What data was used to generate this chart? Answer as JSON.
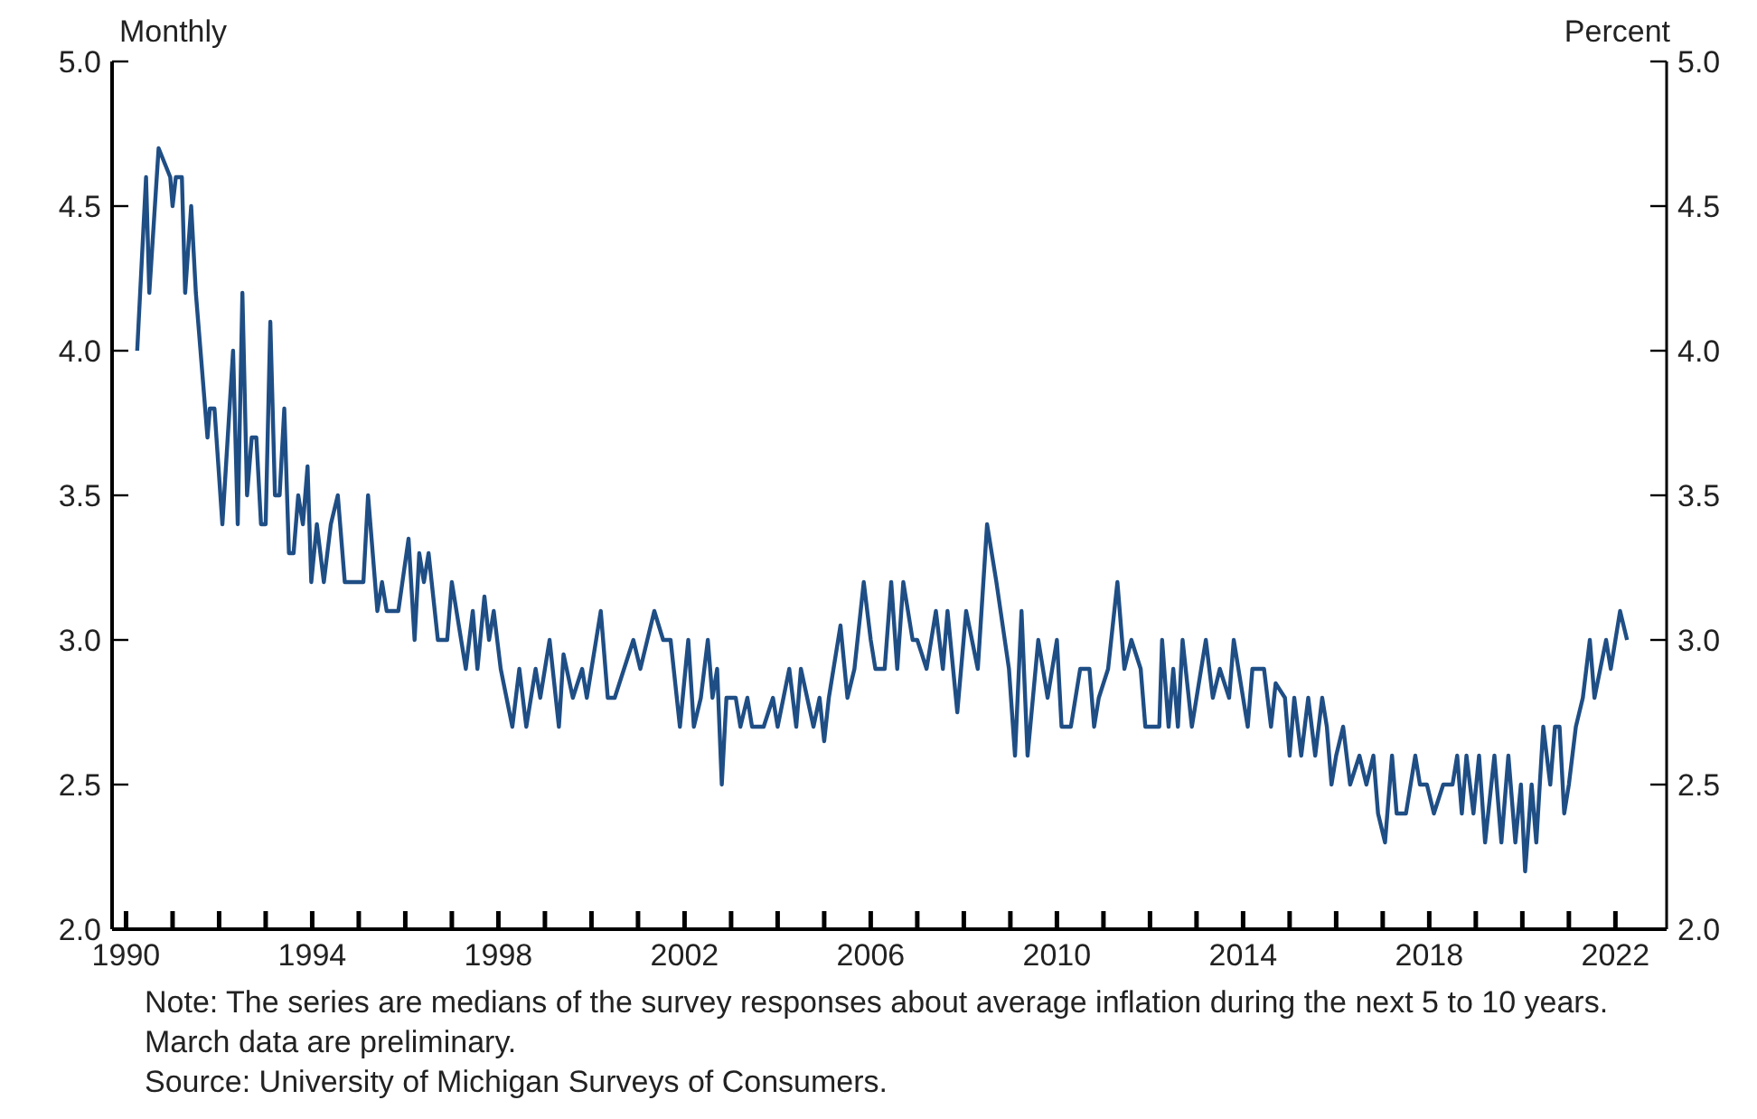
{
  "chart_data": {
    "type": "line",
    "ylabel": "Monthly",
    "y2label": "Percent",
    "x": [
      1990.24,
      1990.43,
      1990.5,
      1990.7,
      1990.95,
      1991.0,
      1991.07,
      1991.2,
      1991.27,
      1991.4,
      1991.5,
      1991.7,
      1991.75,
      1991.8,
      1991.9,
      1992.07,
      1992.3,
      1992.4,
      1992.5,
      1992.6,
      1992.7,
      1992.8,
      1992.9,
      1993.0,
      1993.1,
      1993.2,
      1993.3,
      1993.4,
      1993.5,
      1993.6,
      1993.7,
      1993.8,
      1993.9,
      1993.98,
      1994.1,
      1994.25,
      1994.4,
      1994.55,
      1994.7,
      1995.1,
      1995.2,
      1995.4,
      1995.5,
      1995.6,
      1995.85,
      1996.07,
      1996.2,
      1996.3,
      1996.4,
      1996.5,
      1996.7,
      1996.9,
      1997.0,
      1997.3,
      1997.45,
      1997.55,
      1997.7,
      1997.8,
      1997.9,
      1998.05,
      1998.3,
      1998.45,
      1998.6,
      1998.8,
      1998.9,
      1999.1,
      1999.3,
      1999.4,
      1999.6,
      1999.8,
      1999.9,
      2000.1,
      2000.2,
      2000.35,
      2000.5,
      2000.9,
      2001.05,
      2001.35,
      2001.54,
      2001.7,
      2001.9,
      2002.08,
      2002.2,
      2002.35,
      2002.5,
      2002.6,
      2002.7,
      2002.8,
      2002.9,
      2003.1,
      2003.2,
      2003.35,
      2003.45,
      2003.7,
      2003.9,
      2004.0,
      2004.25,
      2004.4,
      2004.5,
      2004.77,
      2004.9,
      2005.0,
      2005.1,
      2005.35,
      2005.5,
      2005.65,
      2005.85,
      2006.0,
      2006.1,
      2006.3,
      2006.44,
      2006.57,
      2006.7,
      2006.9,
      2007.0,
      2007.2,
      2007.4,
      2007.55,
      2007.65,
      2007.86,
      2008.05,
      2008.3,
      2008.5,
      2008.7,
      2008.97,
      2009.1,
      2009.24,
      2009.37,
      2009.6,
      2009.8,
      2010.0,
      2010.1,
      2010.3,
      2010.5,
      2010.7,
      2010.8,
      2010.9,
      2011.1,
      2011.3,
      2011.45,
      2011.6,
      2011.8,
      2011.9,
      2012.2,
      2012.26,
      2012.4,
      2012.5,
      2012.6,
      2012.7,
      2012.9,
      2013.2,
      2013.35,
      2013.5,
      2013.7,
      2013.8,
      2014.0,
      2014.1,
      2014.2,
      2014.45,
      2014.6,
      2014.7,
      2014.9,
      2015.0,
      2015.1,
      2015.25,
      2015.4,
      2015.55,
      2015.7,
      2015.8,
      2015.9,
      2016.0,
      2016.15,
      2016.3,
      2016.5,
      2016.65,
      2016.8,
      2016.9,
      2017.05,
      2017.2,
      2017.3,
      2017.5,
      2017.7,
      2017.8,
      2017.95,
      2018.1,
      2018.3,
      2018.5,
      2018.6,
      2018.7,
      2018.8,
      2018.95,
      2019.07,
      2019.2,
      2019.4,
      2019.55,
      2019.7,
      2019.85,
      2019.97,
      2020.06,
      2020.2,
      2020.3,
      2020.45,
      2020.6,
      2020.7,
      2020.8,
      2020.9,
      2021.0,
      2021.15,
      2021.3,
      2021.45,
      2021.55,
      2021.8,
      2021.9,
      2022.0,
      2022.1,
      2022.25
    ],
    "series": [
      {
        "color": "#1f4e85",
        "values": [
          4.0,
          4.6,
          4.2,
          4.7,
          4.6,
          4.5,
          4.6,
          4.6,
          4.2,
          4.5,
          4.2,
          3.8,
          3.7,
          3.8,
          3.8,
          3.4,
          4.0,
          3.4,
          4.2,
          3.5,
          3.7,
          3.7,
          3.4,
          3.4,
          4.1,
          3.5,
          3.5,
          3.8,
          3.3,
          3.3,
          3.5,
          3.4,
          3.6,
          3.2,
          3.4,
          3.2,
          3.4,
          3.5,
          3.2,
          3.2,
          3.5,
          3.1,
          3.2,
          3.1,
          3.1,
          3.35,
          3.0,
          3.3,
          3.2,
          3.3,
          3.0,
          3.0,
          3.2,
          2.9,
          3.1,
          2.9,
          3.15,
          3.0,
          3.1,
          2.9,
          2.7,
          2.9,
          2.7,
          2.9,
          2.8,
          3.0,
          2.7,
          2.95,
          2.8,
          2.9,
          2.8,
          3.0,
          3.1,
          2.8,
          2.8,
          3.0,
          2.9,
          3.1,
          3.0,
          3.0,
          2.7,
          3.0,
          2.7,
          2.8,
          3.0,
          2.8,
          2.9,
          2.5,
          2.8,
          2.8,
          2.7,
          2.8,
          2.7,
          2.7,
          2.8,
          2.7,
          2.9,
          2.7,
          2.9,
          2.7,
          2.8,
          2.65,
          2.8,
          3.05,
          2.8,
          2.9,
          3.2,
          3.0,
          2.9,
          2.9,
          3.2,
          2.9,
          3.2,
          3.0,
          3.0,
          2.9,
          3.1,
          2.9,
          3.1,
          2.75,
          3.1,
          2.9,
          3.4,
          3.2,
          2.9,
          2.6,
          3.1,
          2.6,
          3.0,
          2.8,
          3.0,
          2.7,
          2.7,
          2.9,
          2.9,
          2.7,
          2.8,
          2.9,
          3.2,
          2.9,
          3.0,
          2.9,
          2.7,
          2.7,
          3.0,
          2.7,
          2.9,
          2.7,
          3.0,
          2.7,
          3.0,
          2.8,
          2.9,
          2.8,
          3.0,
          2.8,
          2.7,
          2.9,
          2.9,
          2.7,
          2.85,
          2.8,
          2.6,
          2.8,
          2.6,
          2.8,
          2.6,
          2.8,
          2.7,
          2.5,
          2.6,
          2.7,
          2.5,
          2.6,
          2.5,
          2.6,
          2.4,
          2.3,
          2.6,
          2.4,
          2.4,
          2.6,
          2.5,
          2.5,
          2.4,
          2.5,
          2.5,
          2.6,
          2.4,
          2.6,
          2.4,
          2.6,
          2.3,
          2.6,
          2.3,
          2.6,
          2.3,
          2.5,
          2.2,
          2.5,
          2.3,
          2.7,
          2.5,
          2.7,
          2.7,
          2.4,
          2.5,
          2.7,
          2.8,
          3.0,
          2.8,
          3.0,
          2.9,
          3.0,
          3.1,
          3.0
        ]
      }
    ],
    "xlim": [
      1989.7,
      2023.1
    ],
    "xticks": [
      {
        "value": 1990,
        "label": "1990"
      },
      {
        "value": 1991,
        "label": null
      },
      {
        "value": 1992,
        "label": null
      },
      {
        "value": 1993,
        "label": null
      },
      {
        "value": 1994,
        "label": "1994"
      },
      {
        "value": 1995,
        "label": null
      },
      {
        "value": 1996,
        "label": null
      },
      {
        "value": 1997,
        "label": null
      },
      {
        "value": 1998,
        "label": "1998"
      },
      {
        "value": 1999,
        "label": null
      },
      {
        "value": 2000,
        "label": null
      },
      {
        "value": 2001,
        "label": null
      },
      {
        "value": 2002,
        "label": "2002"
      },
      {
        "value": 2003,
        "label": null
      },
      {
        "value": 2004,
        "label": null
      },
      {
        "value": 2005,
        "label": null
      },
      {
        "value": 2006,
        "label": "2006"
      },
      {
        "value": 2007,
        "label": null
      },
      {
        "value": 2008,
        "label": null
      },
      {
        "value": 2009,
        "label": null
      },
      {
        "value": 2010,
        "label": "2010"
      },
      {
        "value": 2011,
        "label": null
      },
      {
        "value": 2012,
        "label": null
      },
      {
        "value": 2013,
        "label": null
      },
      {
        "value": 2014,
        "label": "2014"
      },
      {
        "value": 2015,
        "label": null
      },
      {
        "value": 2016,
        "label": null
      },
      {
        "value": 2017,
        "label": null
      },
      {
        "value": 2018,
        "label": "2018"
      },
      {
        "value": 2019,
        "label": null
      },
      {
        "value": 2020,
        "label": null
      },
      {
        "value": 2021,
        "label": null
      },
      {
        "value": 2022,
        "label": "2022"
      }
    ],
    "ylim": [
      2.0,
      5.0
    ],
    "yticks": [
      {
        "value": 2,
        "label": "2.0"
      },
      {
        "value": 2.5,
        "label": "2.5"
      },
      {
        "value": 3,
        "label": "3.0"
      },
      {
        "value": 3.5,
        "label": "3.5"
      },
      {
        "value": 4,
        "label": "4.0"
      },
      {
        "value": 4.5,
        "label": "4.5"
      },
      {
        "value": 5,
        "label": "5.0"
      }
    ],
    "y2lim": [
      2.0,
      5.0
    ],
    "y2ticks": [
      {
        "value": 2,
        "label": "2.0"
      },
      {
        "value": 2.5,
        "label": "2.5"
      },
      {
        "value": 3,
        "label": "3.0"
      },
      {
        "value": 3.5,
        "label": "3.5"
      },
      {
        "value": 4,
        "label": "4.0"
      },
      {
        "value": 4.5,
        "label": "4.5"
      },
      {
        "value": 5,
        "label": "5.0"
      }
    ],
    "grid": false,
    "legend": false,
    "marker": "none",
    "line_style": "solid",
    "annotations": [
      "Note: The series are medians of the survey responses about average inflation during the next 5 to 10 years. March data are preliminary.",
      "Source: University of Michigan Surveys of Consumers."
    ]
  }
}
